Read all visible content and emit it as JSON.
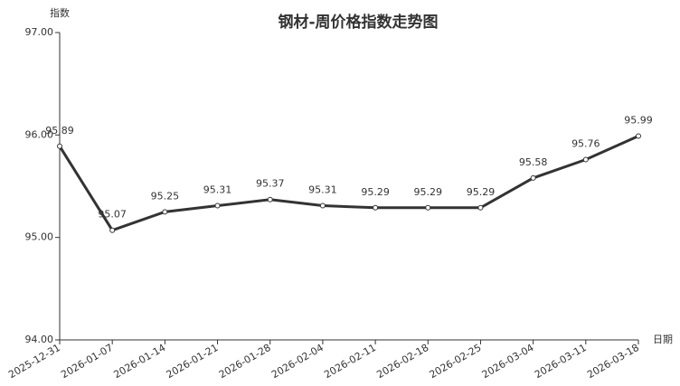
{
  "chart_data": {
    "type": "line",
    "title": "钢材-周价格指数走势图",
    "y_label": "指数",
    "x_label": "日期",
    "categories": [
      "2025-12-31",
      "2026-01-07",
      "2026-01-14",
      "2026-01-21",
      "2026-01-28",
      "2026-02-04",
      "2026-02-11",
      "2026-02-18",
      "2026-02-25",
      "2026-03-04",
      "2026-03-11",
      "2026-03-18"
    ],
    "series": [
      {
        "name": "指数",
        "color": "#333333",
        "values": [
          95.89,
          95.07,
          95.25,
          95.31,
          95.37,
          95.31,
          95.29,
          95.29,
          95.29,
          95.58,
          95.76,
          95.99
        ]
      }
    ],
    "ylim": [
      94,
      97
    ],
    "yticks": [
      {
        "value": 94,
        "label": "94.00"
      },
      {
        "value": 95,
        "label": "95.00"
      },
      {
        "value": 96,
        "label": "96.00"
      },
      {
        "value": 97,
        "label": "97.00"
      }
    ],
    "grid": false
  }
}
